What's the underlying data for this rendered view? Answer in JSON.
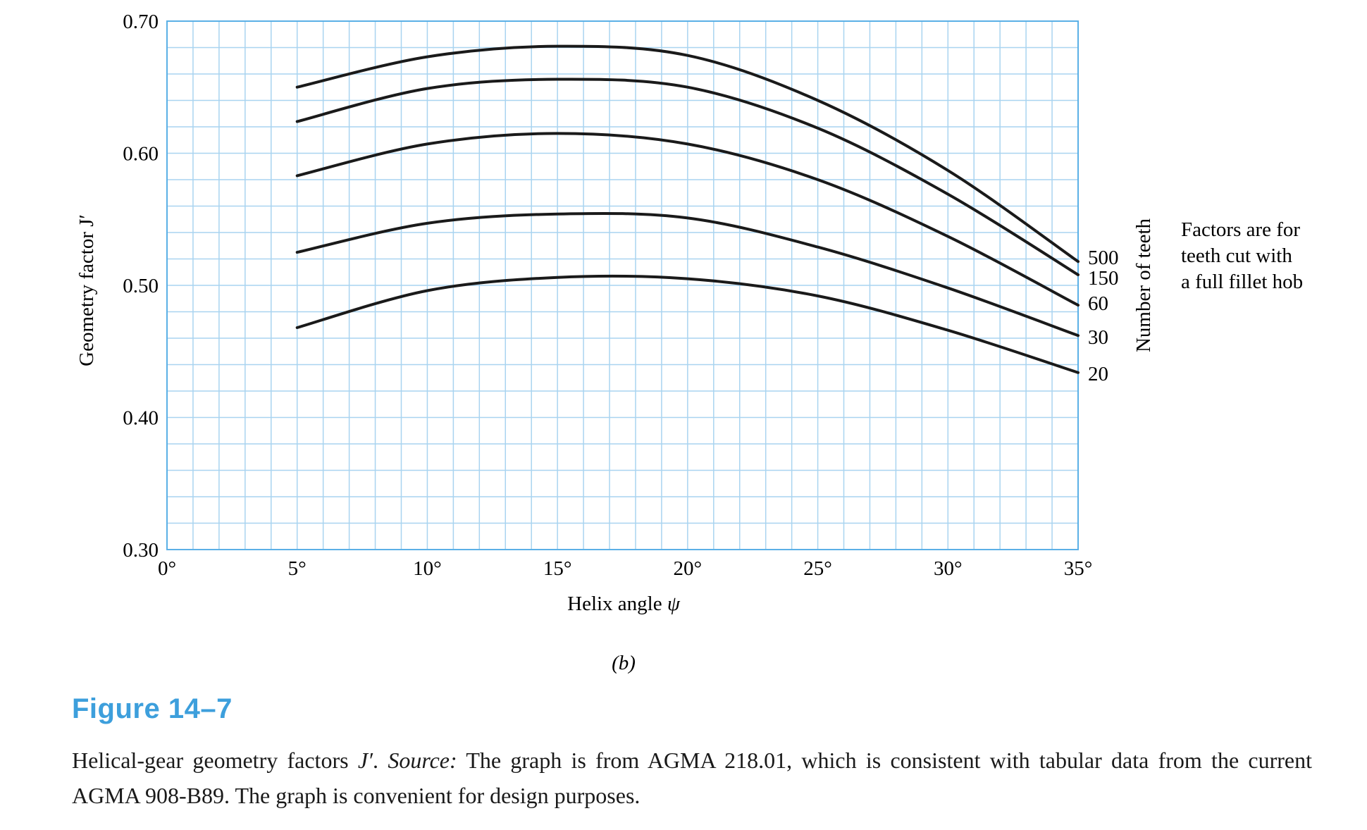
{
  "chart_data": {
    "type": "line",
    "xlabel": "Helix angle",
    "xlabel_symbol": "ψ",
    "ylabel": "Geometry factor J′",
    "xlim": [
      0,
      35
    ],
    "ylim": [
      0.3,
      0.7
    ],
    "x_ticks": [
      "0°",
      "5°",
      "10°",
      "15°",
      "20°",
      "25°",
      "30°",
      "35°"
    ],
    "y_ticks": [
      "0.30",
      "0.40",
      "0.50",
      "0.60",
      "0.70"
    ],
    "x_grid_step": 1,
    "y_grid_step": 0.02,
    "x": [
      5,
      10,
      15,
      20,
      25,
      30,
      35
    ],
    "series": [
      {
        "name": "500",
        "values": [
          0.65,
          0.673,
          0.681,
          0.674,
          0.64,
          0.587,
          0.518
        ]
      },
      {
        "name": "150",
        "values": [
          0.624,
          0.649,
          0.656,
          0.65,
          0.619,
          0.569,
          0.508
        ]
      },
      {
        "name": "60",
        "values": [
          0.583,
          0.607,
          0.615,
          0.607,
          0.58,
          0.537,
          0.485
        ]
      },
      {
        "name": "30",
        "values": [
          0.525,
          0.547,
          0.554,
          0.551,
          0.529,
          0.498,
          0.462
        ]
      },
      {
        "name": "20",
        "values": [
          0.468,
          0.496,
          0.506,
          0.505,
          0.492,
          0.466,
          0.434
        ]
      }
    ],
    "legend_title": "Number of teeth",
    "annotation": [
      "Factors are for",
      "teeth cut with",
      "a full fillet hob"
    ],
    "panel_label": "(b)",
    "grid": true,
    "colors": {
      "grid": "#a9d4f0",
      "axis": "#5bb0e6",
      "line": "#1a1a1a"
    }
  },
  "figure": {
    "title": "Figure 14–7",
    "caption_part1": "Helical-gear geometry factors ",
    "caption_symbol": "J′",
    "caption_part2": ". ",
    "caption_source_label": "Source:",
    "caption_part3": " The graph is from AGMA 218.01, which is consistent with tabular data from the current AGMA 908-B89. The graph is convenient for design purposes."
  }
}
